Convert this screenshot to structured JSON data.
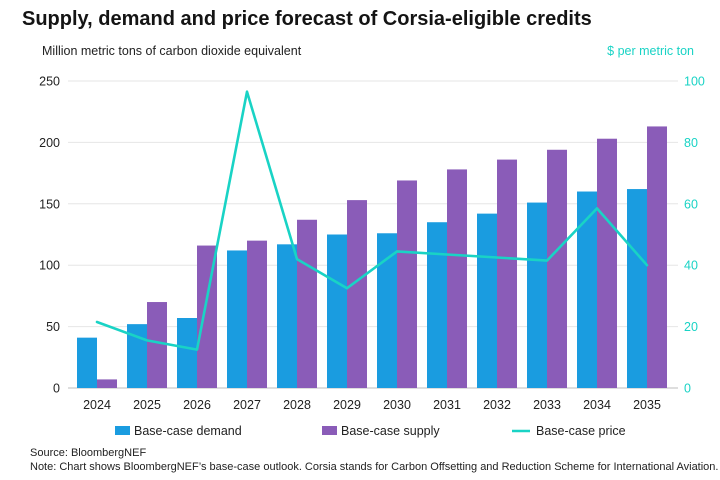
{
  "title": "Supply, demand and price forecast of Corsia-eligible credits",
  "source": "Source: BloombergNEF",
  "note": "Note: Chart shows BloombergNEF’s base-case outlook. Corsia stands for Carbon Offsetting and Reduction Scheme for International Aviation.",
  "colors": {
    "demand": "#1a9ce0",
    "supply": "#8a5cb8",
    "price": "#19d3c5",
    "grid": "#e6e6e6"
  },
  "chart_data": {
    "type": "bar",
    "title": "Supply, demand and price forecast of Corsia-eligible credits",
    "ylabel": "Million metric tons of carbon dioxide equivalent",
    "y2label": "$ per metric ton",
    "ylim": [
      0,
      250
    ],
    "y2lim": [
      0,
      100
    ],
    "yticks": [
      0,
      50,
      100,
      150,
      200,
      250
    ],
    "y2ticks": [
      0,
      20,
      40,
      60,
      80,
      100
    ],
    "grid": true,
    "legend_position": "bottom",
    "categories": [
      "2024",
      "2025",
      "2026",
      "2027",
      "2028",
      "2029",
      "2030",
      "2031",
      "2032",
      "2033",
      "2034",
      "2035"
    ],
    "series": [
      {
        "name": "Base-case demand",
        "type": "bar",
        "axis": "left",
        "values": [
          41,
          52,
          57,
          112,
          117,
          125,
          126,
          135,
          142,
          151,
          160,
          162
        ]
      },
      {
        "name": "Base-case supply",
        "type": "bar",
        "axis": "left",
        "values": [
          7,
          70,
          116,
          120,
          137,
          153,
          169,
          178,
          186,
          194,
          203,
          213
        ]
      },
      {
        "name": "Base-case price",
        "type": "line",
        "axis": "right",
        "values": [
          21.5,
          15.5,
          12.5,
          96.5,
          42,
          32.5,
          44.5,
          43.5,
          42.5,
          41.5,
          58.5,
          40
        ]
      }
    ]
  }
}
